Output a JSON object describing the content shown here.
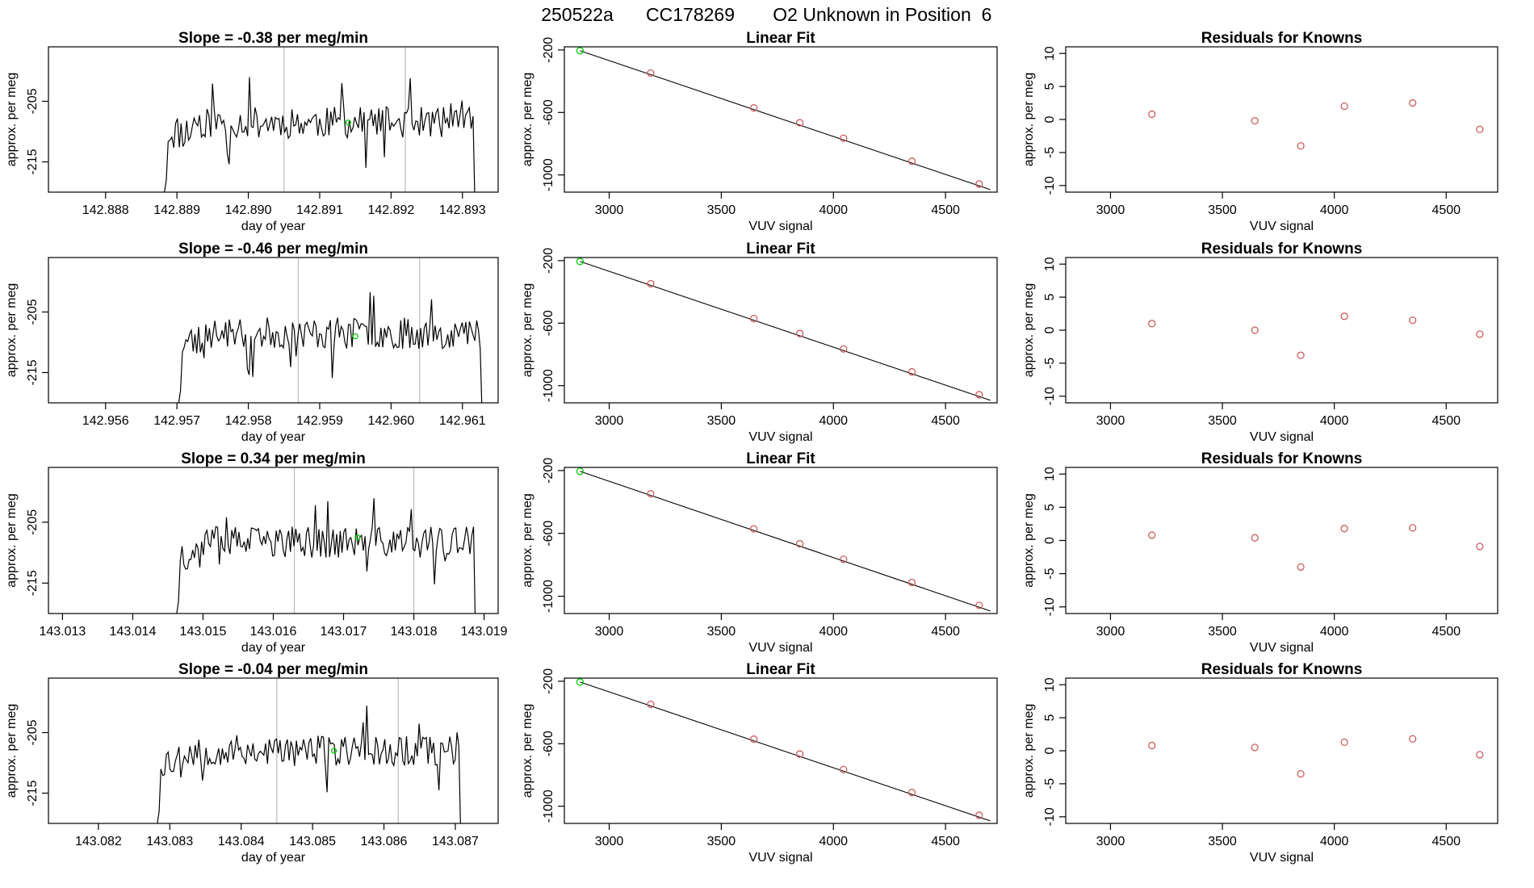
{
  "figure": {
    "title_parts": [
      "250522a",
      "CC178269",
      "O2 Unknown in Position",
      "6"
    ]
  },
  "colors": {
    "known": "#cd5c5c",
    "unknown": "#00cc00",
    "line": "#000000",
    "vline": "#bbbbbb"
  },
  "chart_data": [
    {
      "type": "line",
      "row": 0,
      "panel": "time_series",
      "title": "Slope =  -0.38  per meg/min",
      "xlabel": "day of year",
      "ylabel": "approx. per meg",
      "xlim": [
        142.8872,
        142.8935
      ],
      "ylim": [
        -220,
        -196
      ],
      "xticks": [
        "142.888",
        "142.889",
        "142.890",
        "142.891",
        "142.892",
        "142.893"
      ],
      "xtick_values": [
        142.888,
        142.889,
        142.89,
        142.891,
        142.892,
        142.893
      ],
      "yticks": [
        "-205",
        "-215"
      ],
      "ytick_values": [
        -205,
        -215
      ],
      "segment_bounds": [
        142.8905,
        142.8922
      ],
      "series_x_range": [
        142.8888,
        142.8932
      ],
      "level": -208.5,
      "noise": 2.6,
      "seed": 11,
      "unknown_point": {
        "x": 142.8914,
        "y": -208.5
      }
    },
    {
      "type": "scatter",
      "row": 0,
      "panel": "linear_fit",
      "title": "Linear Fit",
      "xlabel": "VUV signal",
      "ylabel": "approx. per meg",
      "xlim": [
        2800,
        4730
      ],
      "ylim": [
        -1110,
        -180
      ],
      "xticks": [
        "3000",
        "3500",
        "4000",
        "4500"
      ],
      "xtick_values": [
        3000,
        3500,
        4000,
        4500
      ],
      "yticks": [
        "-200",
        "-600",
        "-1000"
      ],
      "ytick_values": [
        -200,
        -600,
        -1000
      ],
      "known_x": [
        3185,
        3645,
        3850,
        4045,
        4350,
        4650
      ],
      "known_y": [
        -348,
        -571,
        -666,
        -765,
        -912,
        -1058
      ],
      "unknown": {
        "x": 2870,
        "y": -205
      },
      "fit_line": {
        "x": [
          2870,
          4700
        ],
        "y": [
          -205,
          -1094
        ]
      }
    },
    {
      "type": "scatter",
      "row": 0,
      "panel": "residuals",
      "title": "Residuals for Knowns",
      "xlabel": "VUV signal",
      "ylabel": "approx. per meg",
      "xlim": [
        2800,
        4730
      ],
      "ylim": [
        -11,
        11
      ],
      "xticks": [
        "3000",
        "3500",
        "4000",
        "4500"
      ],
      "xtick_values": [
        3000,
        3500,
        4000,
        4500
      ],
      "yticks": [
        "10",
        "5",
        "0",
        "-5",
        "-10"
      ],
      "ytick_values": [
        10,
        5,
        0,
        -5,
        -10
      ],
      "x": [
        3185,
        3645,
        3850,
        4045,
        4350,
        4650
      ],
      "y": [
        0.8,
        -0.2,
        -4.0,
        2.0,
        2.5,
        -1.5
      ]
    },
    {
      "type": "line",
      "row": 1,
      "panel": "time_series",
      "title": "Slope =  -0.46  per meg/min",
      "xlabel": "day of year",
      "ylabel": "approx. per meg",
      "xlim": [
        142.9552,
        142.9615
      ],
      "ylim": [
        -220,
        -196
      ],
      "xticks": [
        "142.956",
        "142.957",
        "142.958",
        "142.959",
        "142.960",
        "142.961"
      ],
      "xtick_values": [
        142.956,
        142.957,
        142.958,
        142.959,
        142.96,
        142.961
      ],
      "yticks": [
        "-205",
        "-215"
      ],
      "ytick_values": [
        -205,
        -215
      ],
      "segment_bounds": [
        142.9587,
        142.9604
      ],
      "series_x_range": [
        142.957,
        142.9613
      ],
      "level": -208.5,
      "noise": 2.6,
      "seed": 23,
      "unknown_point": {
        "x": 142.9595,
        "y": -209
      }
    },
    {
      "type": "scatter",
      "row": 1,
      "panel": "linear_fit",
      "title": "Linear Fit",
      "xlabel": "VUV signal",
      "ylabel": "approx. per meg",
      "xlim": [
        2800,
        4730
      ],
      "ylim": [
        -1110,
        -180
      ],
      "xticks": [
        "3000",
        "3500",
        "4000",
        "4500"
      ],
      "xtick_values": [
        3000,
        3500,
        4000,
        4500
      ],
      "yticks": [
        "-200",
        "-600",
        "-1000"
      ],
      "ytick_values": [
        -200,
        -600,
        -1000
      ],
      "known_x": [
        3185,
        3645,
        3850,
        4045,
        4350,
        4650
      ],
      "known_y": [
        -348,
        -571,
        -666,
        -765,
        -912,
        -1058
      ],
      "unknown": {
        "x": 2870,
        "y": -205
      },
      "fit_line": {
        "x": [
          2870,
          4700
        ],
        "y": [
          -205,
          -1094
        ]
      }
    },
    {
      "type": "scatter",
      "row": 1,
      "panel": "residuals",
      "title": "Residuals for Knowns",
      "xlabel": "VUV signal",
      "ylabel": "approx. per meg",
      "xlim": [
        2800,
        4730
      ],
      "ylim": [
        -11,
        11
      ],
      "xticks": [
        "3000",
        "3500",
        "4000",
        "4500"
      ],
      "xtick_values": [
        3000,
        3500,
        4000,
        4500
      ],
      "yticks": [
        "10",
        "5",
        "0",
        "-5",
        "-10"
      ],
      "ytick_values": [
        10,
        5,
        0,
        -5,
        -10
      ],
      "x": [
        3185,
        3645,
        3850,
        4045,
        4350,
        4650
      ],
      "y": [
        1.0,
        0.0,
        -3.8,
        2.1,
        1.5,
        -0.6
      ]
    },
    {
      "type": "line",
      "row": 2,
      "panel": "time_series",
      "title": "Slope =  0.34  per meg/min",
      "xlabel": "day of year",
      "ylabel": "approx. per meg",
      "xlim": [
        143.0128,
        143.0192
      ],
      "ylim": [
        -220,
        -196
      ],
      "xticks": [
        "143.013",
        "143.014",
        "143.015",
        "143.016",
        "143.017",
        "143.018",
        "143.019"
      ],
      "xtick_values": [
        143.013,
        143.014,
        143.015,
        143.016,
        143.017,
        143.018,
        143.019
      ],
      "yticks": [
        "-205",
        "-215"
      ],
      "ytick_values": [
        -205,
        -215
      ],
      "segment_bounds": [
        143.0163,
        143.018
      ],
      "series_x_range": [
        143.0146,
        143.0189
      ],
      "level": -208.3,
      "noise": 2.6,
      "seed": 37,
      "unknown_point": {
        "x": 143.0172,
        "y": -207.5
      }
    },
    {
      "type": "scatter",
      "row": 2,
      "panel": "linear_fit",
      "title": "Linear Fit",
      "xlabel": "VUV signal",
      "ylabel": "approx. per meg",
      "xlim": [
        2800,
        4730
      ],
      "ylim": [
        -1110,
        -180
      ],
      "xticks": [
        "3000",
        "3500",
        "4000",
        "4500"
      ],
      "xtick_values": [
        3000,
        3500,
        4000,
        4500
      ],
      "yticks": [
        "-200",
        "-600",
        "-1000"
      ],
      "ytick_values": [
        -200,
        -600,
        -1000
      ],
      "known_x": [
        3185,
        3645,
        3850,
        4045,
        4350,
        4650
      ],
      "known_y": [
        -348,
        -571,
        -666,
        -765,
        -912,
        -1058
      ],
      "unknown": {
        "x": 2870,
        "y": -205
      },
      "fit_line": {
        "x": [
          2870,
          4700
        ],
        "y": [
          -205,
          -1094
        ]
      }
    },
    {
      "type": "scatter",
      "row": 2,
      "panel": "residuals",
      "title": "Residuals for Knowns",
      "xlabel": "VUV signal",
      "ylabel": "approx. per meg",
      "xlim": [
        2800,
        4730
      ],
      "ylim": [
        -11,
        11
      ],
      "xticks": [
        "3000",
        "3500",
        "4000",
        "4500"
      ],
      "xtick_values": [
        3000,
        3500,
        4000,
        4500
      ],
      "yticks": [
        "10",
        "5",
        "0",
        "-5",
        "-10"
      ],
      "ytick_values": [
        10,
        5,
        0,
        -5,
        -10
      ],
      "x": [
        3185,
        3645,
        3850,
        4045,
        4350,
        4650
      ],
      "y": [
        0.8,
        0.4,
        -4.0,
        1.8,
        1.9,
        -0.9
      ]
    },
    {
      "type": "line",
      "row": 3,
      "panel": "time_series",
      "title": "Slope =  -0.04  per meg/min",
      "xlabel": "day of year",
      "ylabel": "approx. per meg",
      "xlim": [
        143.0813,
        143.0876
      ],
      "ylim": [
        -220,
        -196
      ],
      "xticks": [
        "143.082",
        "143.083",
        "143.084",
        "143.085",
        "143.086",
        "143.087"
      ],
      "xtick_values": [
        143.082,
        143.083,
        143.084,
        143.085,
        143.086,
        143.087
      ],
      "yticks": [
        "-205",
        "-215"
      ],
      "ytick_values": [
        -205,
        -215
      ],
      "segment_bounds": [
        143.0845,
        143.0862
      ],
      "series_x_range": [
        143.0828,
        143.0871
      ],
      "level": -208.0,
      "noise": 2.6,
      "seed": 53,
      "unknown_point": {
        "x": 143.0853,
        "y": -208
      }
    },
    {
      "type": "scatter",
      "row": 3,
      "panel": "linear_fit",
      "title": "Linear Fit",
      "xlabel": "VUV signal",
      "ylabel": "approx. per meg",
      "xlim": [
        2800,
        4730
      ],
      "ylim": [
        -1110,
        -180
      ],
      "xticks": [
        "3000",
        "3500",
        "4000",
        "4500"
      ],
      "xtick_values": [
        3000,
        3500,
        4000,
        4500
      ],
      "yticks": [
        "-200",
        "-600",
        "-1000"
      ],
      "ytick_values": [
        -200,
        -600,
        -1000
      ],
      "known_x": [
        3185,
        3645,
        3850,
        4045,
        4350,
        4650
      ],
      "known_y": [
        -348,
        -571,
        -666,
        -765,
        -912,
        -1058
      ],
      "unknown": {
        "x": 2870,
        "y": -205
      },
      "fit_line": {
        "x": [
          2870,
          4700
        ],
        "y": [
          -205,
          -1094
        ]
      }
    },
    {
      "type": "scatter",
      "row": 3,
      "panel": "residuals",
      "title": "Residuals for Knowns",
      "xlabel": "VUV signal",
      "ylabel": "approx. per meg",
      "xlim": [
        2800,
        4730
      ],
      "ylim": [
        -11,
        11
      ],
      "xticks": [
        "3000",
        "3500",
        "4000",
        "4500"
      ],
      "xtick_values": [
        3000,
        3500,
        4000,
        4500
      ],
      "yticks": [
        "10",
        "5",
        "0",
        "-5",
        "-10"
      ],
      "ytick_values": [
        10,
        5,
        0,
        -5,
        -10
      ],
      "x": [
        3185,
        3645,
        3850,
        4045,
        4350,
        4650
      ],
      "y": [
        0.8,
        0.5,
        -3.5,
        1.3,
        1.8,
        -0.6
      ]
    }
  ]
}
